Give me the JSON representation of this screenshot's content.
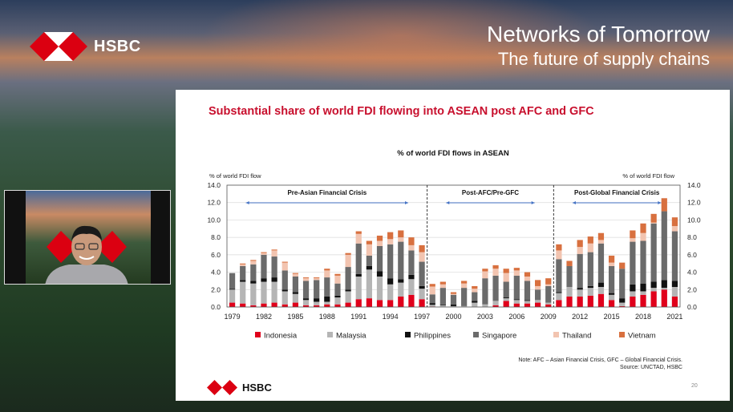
{
  "header": {
    "brand": "HSBC",
    "title": "Networks of Tomorrow",
    "subtitle": "The future of supply chains"
  },
  "slide": {
    "title": "Substantial share of world FDI flowing into ASEAN post AFC and GFC",
    "note_line1": "Note: AFC – Asian Financial Crisis, GFC – Global Financial Crisis.",
    "note_line2": "Source: UNCTAD, HSBC",
    "footer_brand": "HSBC",
    "page_number": "20"
  },
  "chart_data": {
    "type": "bar",
    "stacked": true,
    "title": "% of world FDI flows in ASEAN",
    "ylabel_left": "% of world FDI flow",
    "ylabel_right": "% of world FDI flow",
    "ylim": [
      0,
      14
    ],
    "yticks": [
      "0.0",
      "2.0",
      "4.0",
      "6.0",
      "8.0",
      "10.0",
      "12.0",
      "14.0"
    ],
    "grid": true,
    "legend_position": "bottom",
    "xtick_labels": [
      "1979",
      "1982",
      "1985",
      "1988",
      "1991",
      "1994",
      "1997",
      "2000",
      "2003",
      "2006",
      "2009",
      "2012",
      "2015",
      "2018",
      "2021"
    ],
    "periods": [
      {
        "label": "Pre-Asian Financial Crisis",
        "start": 1979,
        "end": 1997
      },
      {
        "label": "Post-AFC/Pre-GFC",
        "start": 1998,
        "end": 2009
      },
      {
        "label": "Post-Global Financial Crisis",
        "start": 2010,
        "end": 2021
      }
    ],
    "categories": [
      1979,
      1980,
      1981,
      1982,
      1983,
      1984,
      1985,
      1986,
      1987,
      1988,
      1989,
      1990,
      1991,
      1992,
      1993,
      1994,
      1995,
      1996,
      1997,
      1998,
      1999,
      2000,
      2001,
      2002,
      2003,
      2004,
      2005,
      2006,
      2007,
      2008,
      2009,
      2010,
      2011,
      2012,
      2013,
      2014,
      2015,
      2016,
      2017,
      2018,
      2019,
      2020,
      2021
    ],
    "series": [
      {
        "name": "Indonesia",
        "color": "#e0001b",
        "values": [
          0.5,
          0.4,
          0.2,
          0.4,
          0.5,
          0.3,
          0.5,
          0.2,
          0.2,
          0.3,
          0.3,
          0.5,
          0.9,
          1.0,
          0.8,
          0.8,
          1.2,
          1.4,
          0.9,
          0.05,
          0,
          0,
          0,
          0,
          0,
          0.2,
          0.7,
          0.4,
          0.4,
          0.5,
          0.3,
          0.8,
          1.2,
          1.2,
          1.3,
          1.5,
          0.8,
          0.1,
          1.2,
          1.4,
          1.8,
          2.0,
          1.2
        ]
      },
      {
        "name": "Malaysia",
        "color": "#b5b5b5",
        "values": [
          1.5,
          2.5,
          2.5,
          2.5,
          2.4,
          1.5,
          1.0,
          0.6,
          0.4,
          0.3,
          0.8,
          1.3,
          2.6,
          3.3,
          2.7,
          1.8,
          1.6,
          1.8,
          1.2,
          0.2,
          0.2,
          0.1,
          0.1,
          0.5,
          0.3,
          0.5,
          0.3,
          0.4,
          0.3,
          0.3,
          0.2,
          0.8,
          1.1,
          0.8,
          0.9,
          0.8,
          0.6,
          0.4,
          0.6,
          0.4,
          0.4,
          0.2,
          1.1
        ]
      },
      {
        "name": "Philippines",
        "color": "#111111",
        "values": [
          0.1,
          0.2,
          0.3,
          0.4,
          0.5,
          0.2,
          0.2,
          0.2,
          0.4,
          0.6,
          0.2,
          0.2,
          0.3,
          0.4,
          0.6,
          0.7,
          0.4,
          0.5,
          0.3,
          0.2,
          0.1,
          0.2,
          0,
          0.2,
          0,
          0,
          0.1,
          0.1,
          0.1,
          0,
          0,
          0.1,
          0,
          0.2,
          0.2,
          0.5,
          0.2,
          0.5,
          0.8,
          0.9,
          0.7,
          0.9,
          0.7
        ]
      },
      {
        "name": "Singapore",
        "color": "#6b6b6b",
        "values": [
          1.8,
          1.6,
          1.9,
          2.7,
          2.4,
          2.2,
          1.8,
          2.0,
          2.1,
          2.2,
          1.4,
          2.6,
          3.5,
          1.2,
          2.9,
          3.9,
          4.3,
          2.8,
          2.8,
          1.0,
          1.9,
          1.1,
          2.1,
          1.0,
          3.0,
          2.9,
          1.8,
          2.7,
          2.2,
          1.2,
          1.9,
          3.8,
          2.4,
          3.9,
          3.9,
          4.5,
          3.1,
          3.4,
          4.9,
          4.9,
          6.7,
          7.9,
          5.7
        ]
      },
      {
        "name": "Thailand",
        "color": "#f2c4b0",
        "values": [
          0,
          0.2,
          0.4,
          0.2,
          0.7,
          0.9,
          0.3,
          0.3,
          0.2,
          0.8,
          0.9,
          1.4,
          1.1,
          1.3,
          0.6,
          0.6,
          0.5,
          0.6,
          1.1,
          0.9,
          0.4,
          0.1,
          0.5,
          0.4,
          0.8,
          0.8,
          1.0,
          0.6,
          0.5,
          0.4,
          0.2,
          1.0,
          0,
          0.8,
          1.0,
          0.4,
          0.4,
          0,
          0.4,
          0.9,
          0.1,
          0,
          0.6
        ]
      },
      {
        "name": "Vietnam",
        "color": "#d8703f",
        "values": [
          0,
          0.1,
          0.1,
          0.1,
          0.1,
          0.1,
          0.1,
          0.1,
          0.1,
          0.2,
          0.2,
          0.2,
          0.3,
          0.4,
          0.6,
          0.8,
          0.8,
          0.9,
          0.8,
          0.3,
          0.3,
          0.2,
          0.3,
          0.3,
          0.3,
          0.4,
          0.5,
          0.3,
          0.5,
          0.7,
          0.7,
          0.7,
          0.6,
          0.8,
          0.8,
          0.8,
          0.8,
          0.7,
          0.9,
          1.1,
          1.0,
          1.5,
          1.0
        ]
      }
    ]
  }
}
